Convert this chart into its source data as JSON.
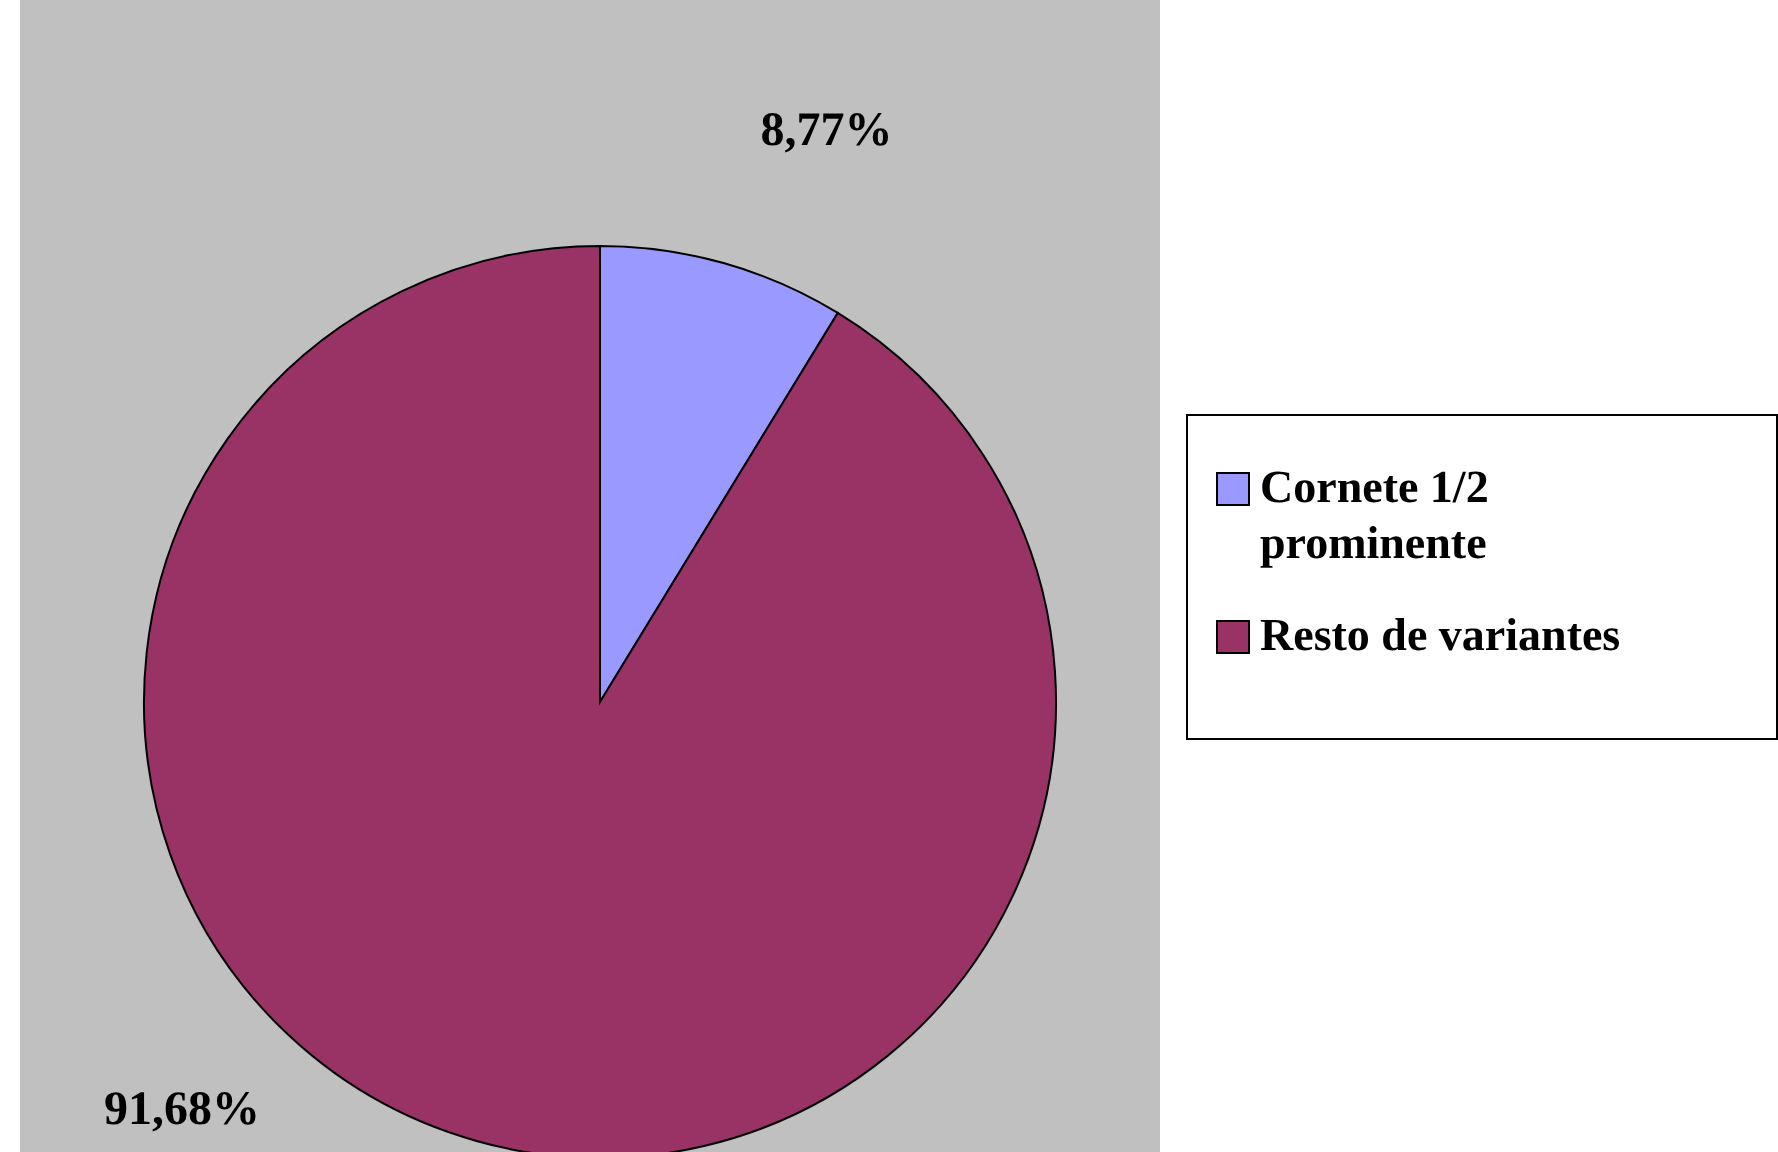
{
  "chart_data": {
    "type": "pie",
    "categories": [
      "Cornete 1/2 prominente",
      "Resto de variantes"
    ],
    "values": [
      8.77,
      91.68
    ],
    "colors": [
      "#9999ff",
      "#993366"
    ],
    "value_labels": [
      "8,77%",
      "91,68%"
    ],
    "legend": "right"
  }
}
